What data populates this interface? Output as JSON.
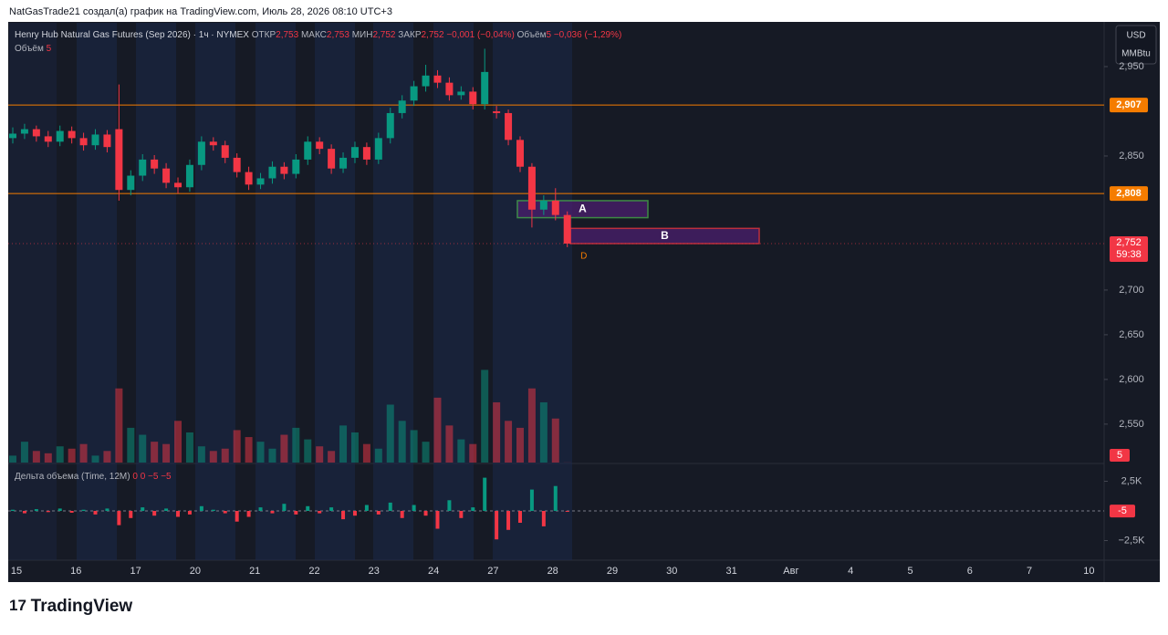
{
  "header": {
    "credit": "NatGasTrade21 создал(а) график на TradingView.com, Июль 28, 2026 08:10 UTC+3",
    "logo": "TradingView"
  },
  "chart_data": {
    "type": "candlestick",
    "legend": {
      "symbol": "Henry Hub Natural Gas Futures (Sep 2026) · 1ч · NYMEX",
      "open_label": "ОТКР",
      "open": "2,753",
      "high_label": "МАКС",
      "high": "2,753",
      "low_label": "МИН",
      "low": "2,752",
      "close_label": "ЗАКР",
      "close": "2,752",
      "change": "−0,001 (−0,04%)",
      "volume_label": "Объём",
      "volume_change": "−0,036 (−1,29%)",
      "volume_line": "Объём"
    },
    "currency": "USD",
    "unit": "MMBtu",
    "categories": [
      "15",
      "16",
      "17",
      "20",
      "21",
      "22",
      "23",
      "24",
      "27",
      "28",
      "29",
      "30",
      "31",
      "Авг",
      "4",
      "5",
      "6",
      "7",
      "10"
    ],
    "up_color": "#089981",
    "down_color": "#f23645",
    "open": [
      2.87,
      2.875,
      2.88,
      2.872,
      2.866,
      2.878,
      2.87,
      2.862,
      2.874,
      2.88,
      2.812,
      2.828,
      2.846,
      2.836,
      2.82,
      2.815,
      2.84,
      2.866,
      2.862,
      2.848,
      2.832,
      2.818,
      2.825,
      2.838,
      2.83,
      2.846,
      2.866,
      2.858,
      2.836,
      2.848,
      2.86,
      2.846,
      2.87,
      2.898,
      2.912,
      2.928,
      2.94,
      2.932,
      2.918,
      2.922,
      2.908,
      2.9,
      2.898,
      2.868,
      2.838,
      2.79,
      2.8,
      2.784
    ],
    "high": [
      2.882,
      2.886,
      2.884,
      2.878,
      2.884,
      2.883,
      2.876,
      2.88,
      2.879,
      2.93,
      2.834,
      2.852,
      2.851,
      2.842,
      2.826,
      2.846,
      2.872,
      2.871,
      2.867,
      2.853,
      2.838,
      2.831,
      2.844,
      2.843,
      2.852,
      2.872,
      2.871,
      2.863,
      2.854,
      2.866,
      2.865,
      2.876,
      2.904,
      2.918,
      2.934,
      2.952,
      2.946,
      2.938,
      2.928,
      2.927,
      2.97,
      2.906,
      2.902,
      2.872,
      2.842,
      2.806,
      2.814,
      2.788
    ],
    "low": [
      2.864,
      2.869,
      2.866,
      2.86,
      2.861,
      2.864,
      2.856,
      2.857,
      2.854,
      2.8,
      2.806,
      2.822,
      2.83,
      2.814,
      2.808,
      2.81,
      2.834,
      2.856,
      2.842,
      2.826,
      2.812,
      2.813,
      2.819,
      2.824,
      2.825,
      2.84,
      2.852,
      2.83,
      2.831,
      2.842,
      2.84,
      2.841,
      2.864,
      2.892,
      2.906,
      2.922,
      2.926,
      2.912,
      2.913,
      2.902,
      2.902,
      2.892,
      2.862,
      2.832,
      2.77,
      2.784,
      2.778,
      2.748
    ],
    "close": [
      2.875,
      2.88,
      2.872,
      2.866,
      2.878,
      2.87,
      2.862,
      2.874,
      2.86,
      2.812,
      2.828,
      2.846,
      2.836,
      2.82,
      2.815,
      2.84,
      2.866,
      2.862,
      2.848,
      2.832,
      2.818,
      2.825,
      2.838,
      2.83,
      2.846,
      2.866,
      2.858,
      2.836,
      2.848,
      2.86,
      2.846,
      2.87,
      2.898,
      2.912,
      2.928,
      2.94,
      2.932,
      2.918,
      2.922,
      2.908,
      2.944,
      2.898,
      2.868,
      2.838,
      2.79,
      2.8,
      2.784,
      2.752
    ],
    "ylim": [
      2.507,
      2.999
    ],
    "yticks": [
      {
        "value": 2.55,
        "label": "2,550"
      },
      {
        "value": 2.6,
        "label": "2,600"
      },
      {
        "value": 2.65,
        "label": "2,650"
      },
      {
        "value": 2.7,
        "label": "2,700"
      },
      {
        "value": 2.85,
        "label": "2,850"
      },
      {
        "value": 2.95,
        "label": "2,950"
      }
    ],
    "levels": [
      {
        "value": 2.907,
        "label": "2,907",
        "color": "#f57c00"
      },
      {
        "value": 2.808,
        "label": "2,808",
        "color": "#f57c00"
      }
    ],
    "last_price": {
      "value": 2.752,
      "label": "2,752",
      "timer": "59:38",
      "color": "#f23645"
    },
    "zones": [
      {
        "name": "A",
        "top": 2.8,
        "bottom": 2.781,
        "color": "#4caf50"
      },
      {
        "name": "B",
        "top": 2.769,
        "bottom": 2.752,
        "color": "#f23645"
      }
    ],
    "marker": "D",
    "volume": {
      "values": [
        300,
        900,
        500,
        400,
        700,
        600,
        800,
        300,
        500,
        3200,
        1500,
        1200,
        900,
        800,
        1800,
        1300,
        700,
        500,
        600,
        1400,
        1100,
        900,
        600,
        1200,
        1500,
        1000,
        700,
        500,
        1600,
        1300,
        800,
        600,
        2500,
        1800,
        1400,
        900,
        2800,
        1600,
        1000,
        800,
        4000,
        2600,
        1800,
        1500,
        3200,
        2600,
        1900,
        5
      ],
      "ylim": [
        0,
        5000
      ]
    },
    "delta": {
      "title": "Дельта объема (Time, 12M)",
      "readout": "0  0  −5  −5",
      "values": [
        100,
        -200,
        150,
        -100,
        200,
        -150,
        100,
        -300,
        200,
        -1200,
        -600,
        300,
        -400,
        200,
        -500,
        -300,
        400,
        100,
        -200,
        -900,
        -500,
        300,
        -200,
        600,
        -300,
        400,
        -200,
        300,
        -700,
        -400,
        500,
        -300,
        700,
        -600,
        500,
        -400,
        -1500,
        900,
        -600,
        300,
        2800,
        -2400,
        -1600,
        -1000,
        1800,
        -1300,
        2100,
        -5
      ],
      "ylim": [
        -4000,
        3846
      ],
      "yticks": [
        {
          "value": 2500,
          "label": "2,5K"
        },
        {
          "value": -2500,
          "label": "−2,5K"
        }
      ]
    }
  }
}
